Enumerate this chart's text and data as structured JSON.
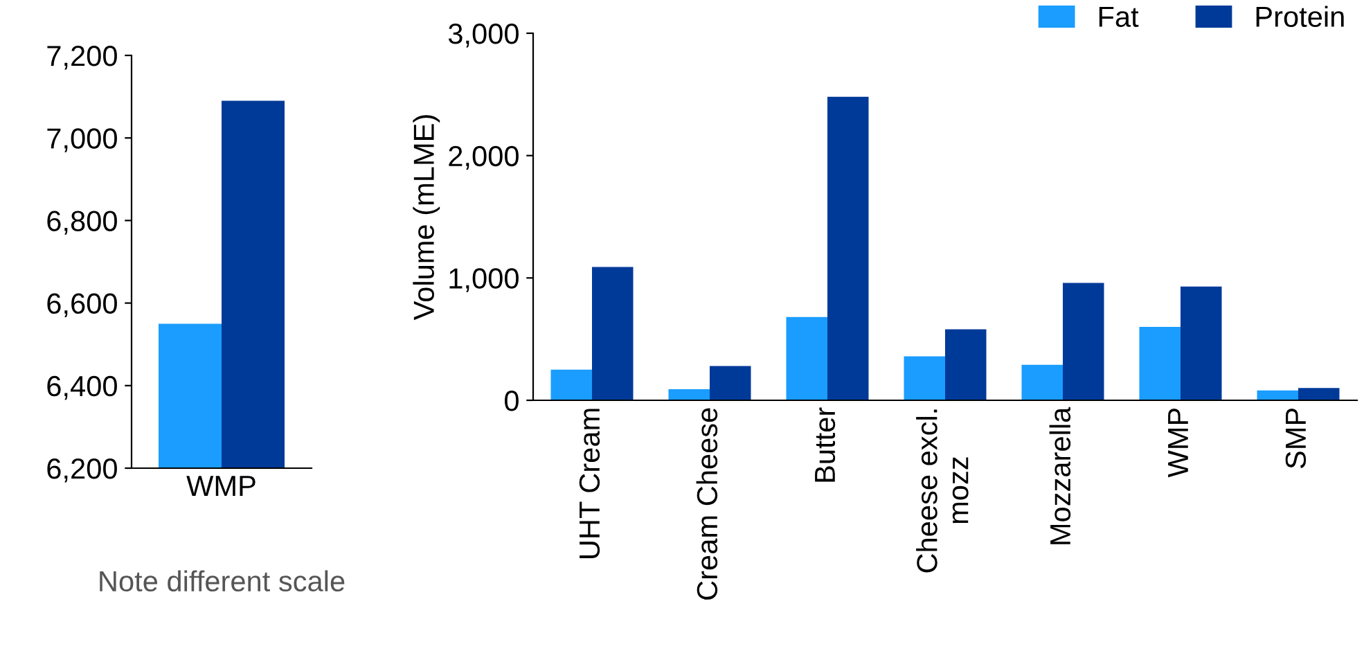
{
  "chart_data": [
    {
      "type": "bar",
      "categories": [
        "WMP"
      ],
      "series": [
        {
          "color": "#1a9dff",
          "values": [
            6550
          ]
        },
        {
          "color": "#003a99",
          "values": [
            7090
          ]
        }
      ],
      "ylim": [
        6200,
        7200
      ],
      "yticks": [
        {
          "value": 6200,
          "label": "6,200"
        },
        {
          "value": 6400,
          "label": "6,400"
        },
        {
          "value": 6600,
          "label": "6,600"
        },
        {
          "value": 6800,
          "label": "6,800"
        },
        {
          "value": 7000,
          "label": "7,000"
        },
        {
          "value": 7200,
          "label": "7,200"
        }
      ],
      "annotations": [
        "Note different scale"
      ],
      "grid": false,
      "legend": false
    },
    {
      "type": "bar",
      "categories": [
        "UHT Cream",
        "Cream Cheese",
        "Butter",
        "Cheese excl.\nmozz",
        "Mozzarella",
        "WMP",
        "SMP"
      ],
      "series": [
        {
          "name": "Fat",
          "color": "#1a9dff",
          "values": [
            250,
            90,
            680,
            360,
            290,
            600,
            80
          ]
        },
        {
          "name": "Protein",
          "color": "#003a99",
          "values": [
            1090,
            280,
            2480,
            580,
            960,
            930,
            100
          ]
        }
      ],
      "ylabel": "Volume (mLME)",
      "ylim": [
        0,
        3000
      ],
      "yticks": [
        0,
        {
          "value": 1000,
          "label": "1,000"
        },
        {
          "value": 2000,
          "label": "2,000"
        },
        {
          "value": 3000,
          "label": "3,000"
        }
      ],
      "grid": false,
      "legend": "top right"
    }
  ]
}
